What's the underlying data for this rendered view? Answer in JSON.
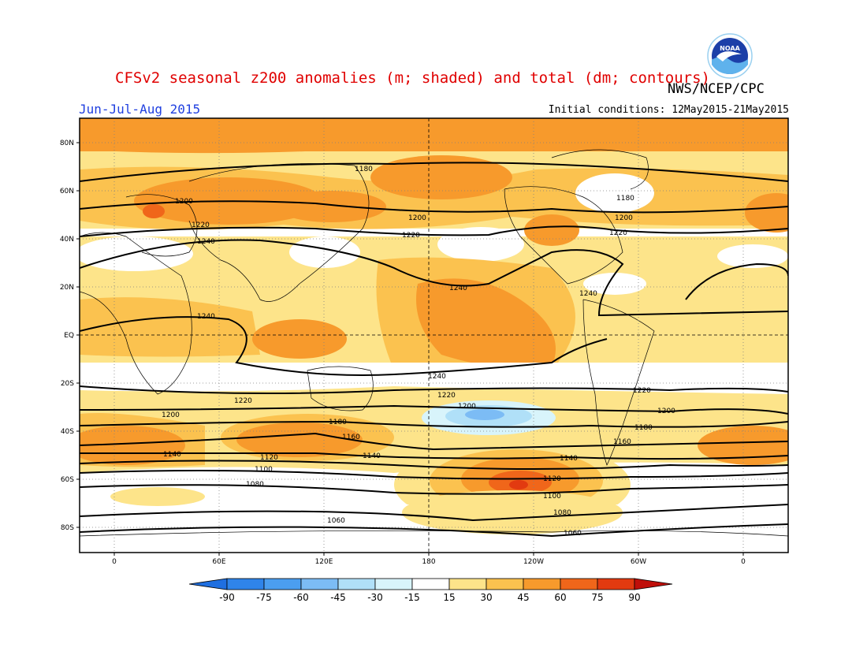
{
  "header": {
    "title": "CFSv2 seasonal z200 anomalies (m; shaded) and total (dm; contours)",
    "agency": "NWS/NCEP/CPC",
    "period": "Jun-Jul-Aug 2015",
    "initial_conditions": "Initial conditions: 12May2015-21May2015",
    "logo_text": "NOAA"
  },
  "map": {
    "lat_ticks": [
      "80N",
      "60N",
      "40N",
      "20N",
      "EQ",
      "20S",
      "40S",
      "60S",
      "80S"
    ],
    "lon_ticks": [
      "0",
      "60E",
      "120E",
      "180",
      "120W",
      "60W",
      "0"
    ],
    "contour_labels": [
      "1180",
      "1180",
      "1200",
      "1200",
      "1200",
      "1220",
      "1220",
      "1220",
      "1240",
      "1240",
      "1240",
      "1240",
      "1240",
      "1220",
      "1220",
      "1220",
      "1200",
      "1200",
      "1200",
      "1180",
      "1180",
      "1160",
      "1160",
      "1140",
      "1140",
      "1140",
      "1120",
      "1120",
      "1100",
      "1100",
      "1080",
      "1080",
      "1060",
      "1060"
    ]
  },
  "colorbar": {
    "labels": [
      "-90",
      "-75",
      "-60",
      "-45",
      "-30",
      "-15",
      "15",
      "30",
      "45",
      "60",
      "75",
      "90"
    ],
    "colors": [
      "#1f6fe0",
      "#2f84ea",
      "#4b9ef0",
      "#7cbcf5",
      "#b0e0f8",
      "#d8f4fb",
      "#ffffff",
      "#fde48a",
      "#fbc24f",
      "#f79a2c",
      "#f0661a",
      "#e23a10",
      "#bf0f0a"
    ],
    "units": "m"
  }
}
